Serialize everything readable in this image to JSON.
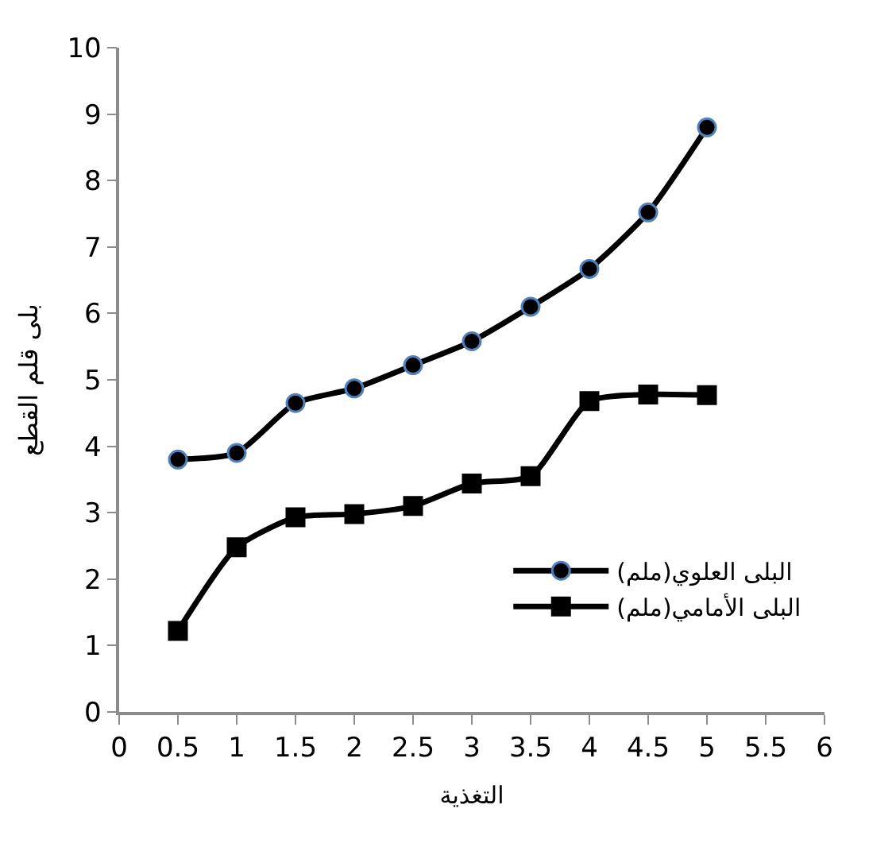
{
  "chart_data": {
    "type": "line",
    "xlabel": "التغذية",
    "ylabel": "بلى قلم القطع",
    "x": [
      0.5,
      1,
      1.5,
      2,
      2.5,
      3,
      3.5,
      4,
      4.5,
      5
    ],
    "series": [
      {
        "name": "البلى العلوي(ملم)",
        "color": "#000000",
        "marker": "circle",
        "values": [
          3.8,
          3.9,
          4.65,
          4.87,
          5.22,
          5.58,
          6.1,
          6.67,
          7.52,
          8.8
        ]
      },
      {
        "name": "البلى الأمامي(ملم)",
        "color": "#000000",
        "marker": "square",
        "values": [
          1.22,
          2.48,
          2.93,
          2.98,
          3.1,
          3.44,
          3.55,
          4.68,
          4.78,
          4.77
        ]
      }
    ],
    "xlim": [
      0,
      6
    ],
    "xticks": [
      0,
      0.5,
      1,
      1.5,
      2,
      2.5,
      3,
      3.5,
      4,
      4.5,
      5,
      5.5,
      6
    ],
    "ylim": [
      0,
      10
    ],
    "yticks": [
      0,
      1,
      2,
      3,
      4,
      5,
      6,
      7,
      8,
      9,
      10
    ],
    "legend": "bottom right",
    "line_style": "solid"
  }
}
